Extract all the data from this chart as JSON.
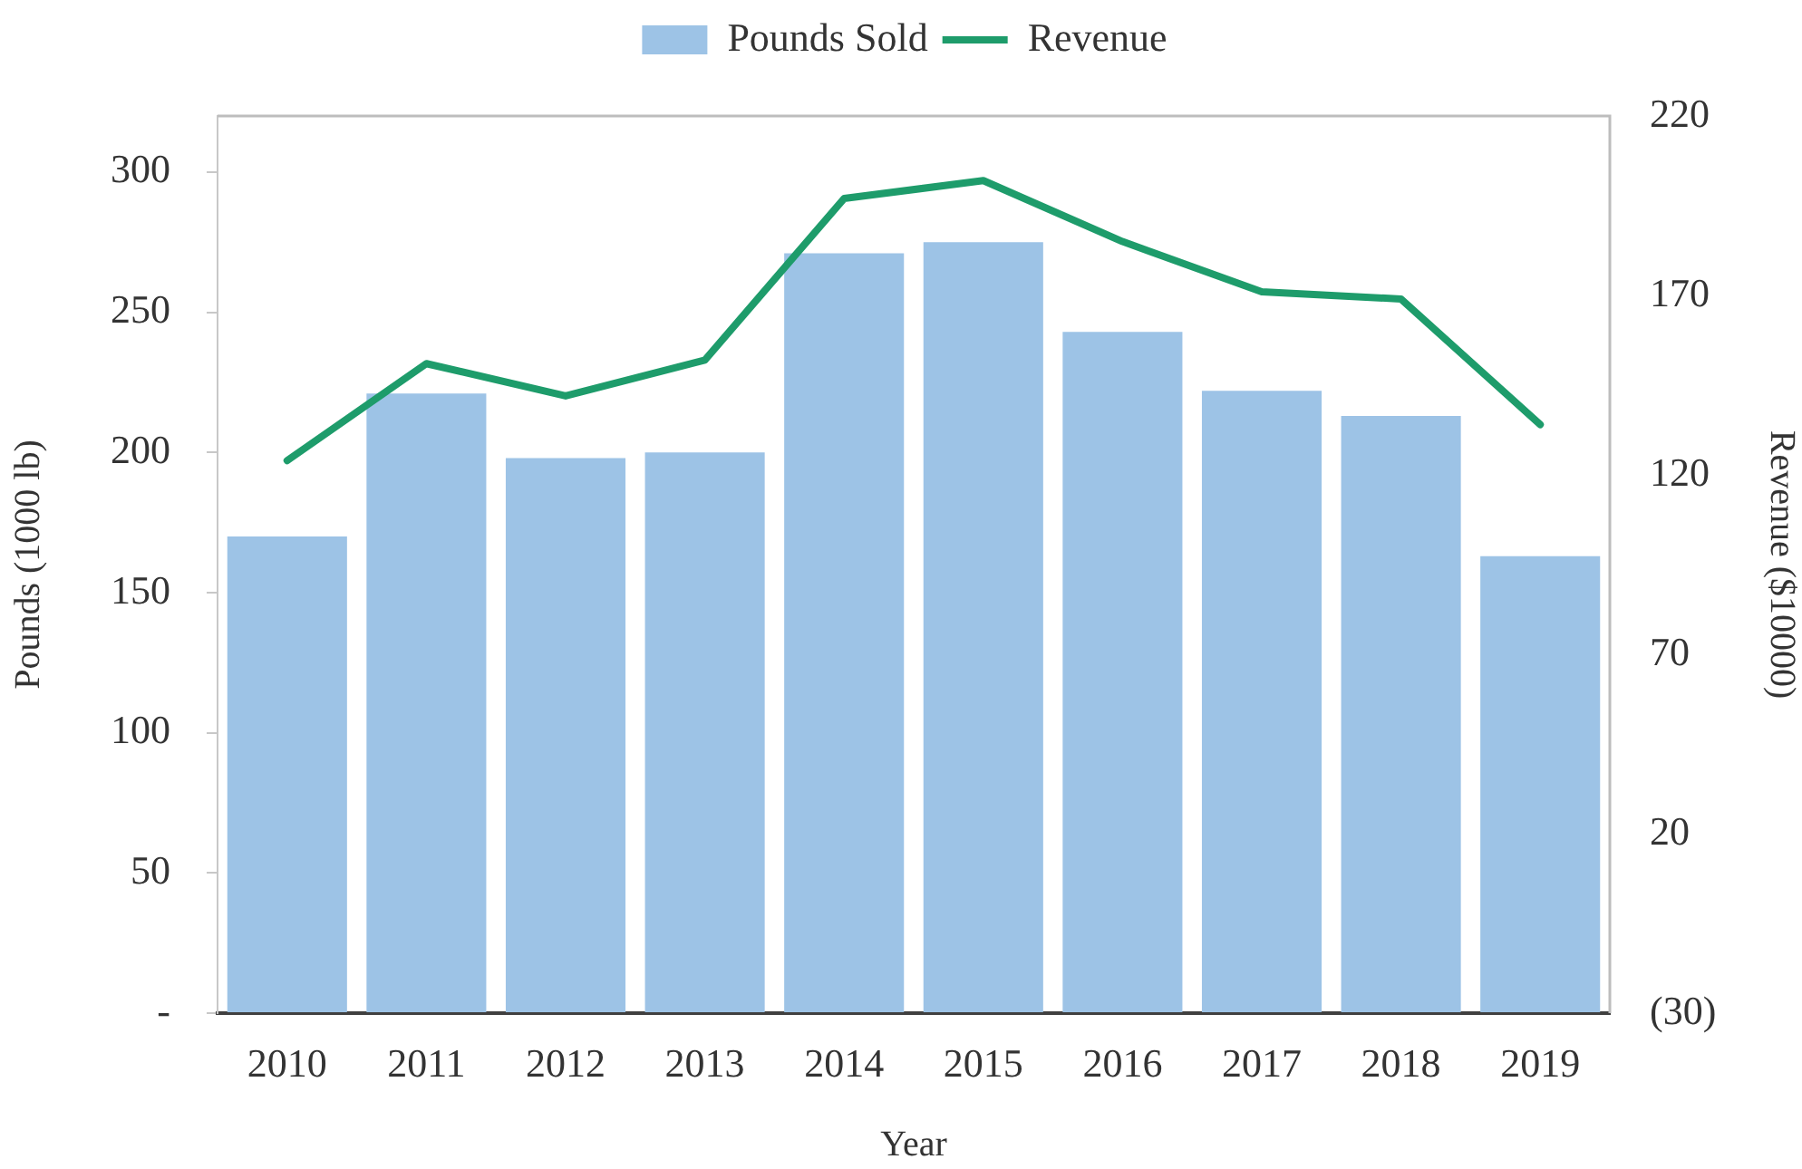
{
  "chart_data": {
    "type": "bar",
    "categories": [
      "2010",
      "2011",
      "2012",
      "2013",
      "2014",
      "2015",
      "2016",
      "2017",
      "2018",
      "2019"
    ],
    "series": [
      {
        "name": "Pounds Sold",
        "color": "#9dc3e6",
        "values": [
          170,
          221,
          198,
          200,
          271,
          275,
          243,
          222,
          213,
          163
        ]
      },
      {
        "name": "Revenue",
        "type": "line",
        "axis": "y2",
        "color": "#1e9c6b",
        "values": [
          124,
          151,
          142,
          152,
          197,
          202,
          185,
          171,
          169,
          134
        ]
      }
    ],
    "xlabel": "Year",
    "ylabel": "Pounds (1000 lb)",
    "y2label": "Revenue ($10000)",
    "ylim": [
      0,
      320
    ],
    "yticks": [
      {
        "value": 0,
        "label": "-"
      },
      50,
      100,
      150,
      200,
      250,
      300
    ],
    "y2lim": [
      -30,
      220
    ],
    "y2ticks": [
      {
        "value": -30,
        "label": "(30)"
      },
      20,
      70,
      120,
      170,
      220
    ],
    "legend": "top"
  }
}
